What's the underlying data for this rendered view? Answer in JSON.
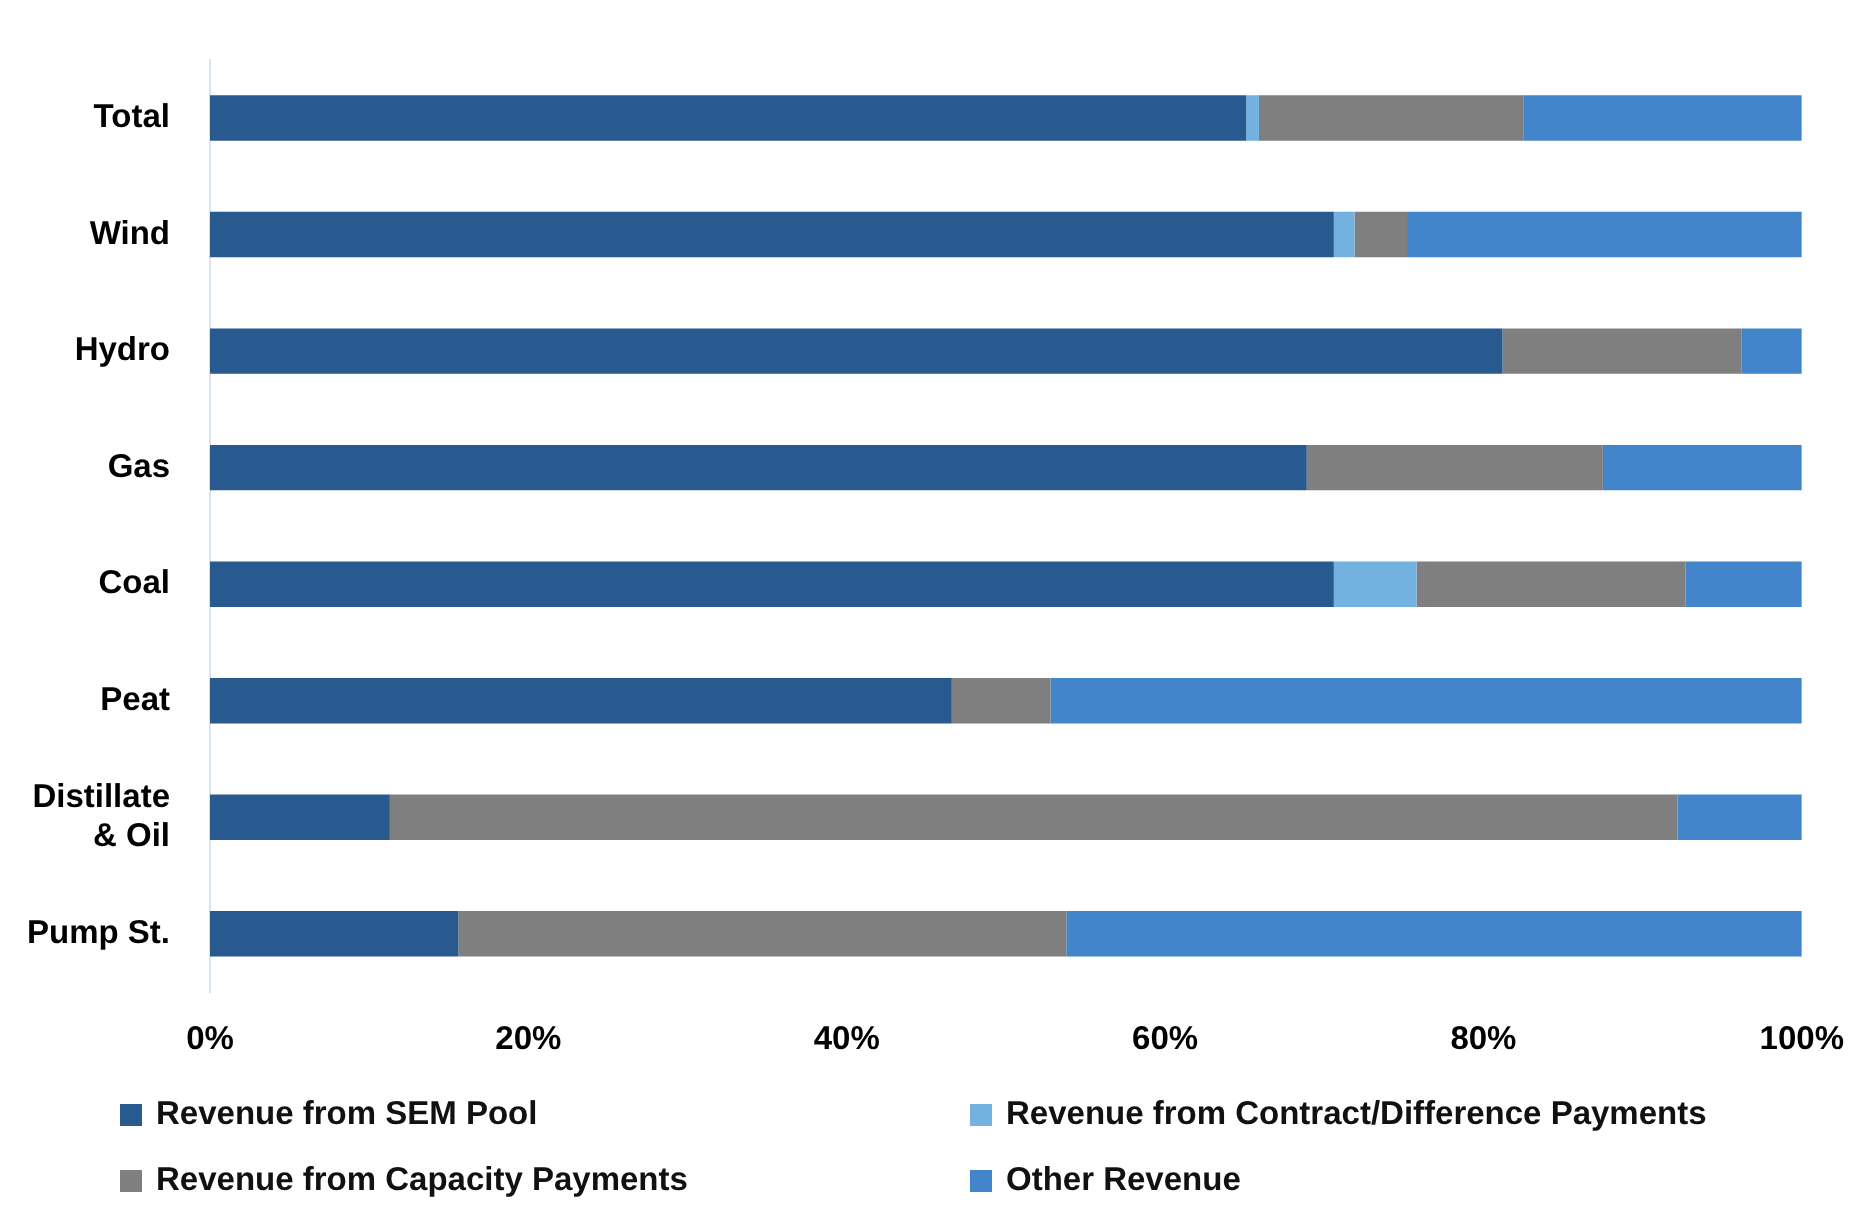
{
  "chart_data": {
    "type": "bar",
    "orientation": "horizontal",
    "stacked": true,
    "categories": [
      "Total",
      "Wind",
      "Hydro",
      "Gas",
      "Coal",
      "Peat",
      "Distillate & Oil",
      "Pump St."
    ],
    "series": [
      {
        "name": "Revenue from SEM Pool",
        "color": "#28598f",
        "values": [
          65.1,
          70.6,
          81.2,
          68.9,
          70.6,
          46.6,
          11.3,
          15.6
        ]
      },
      {
        "name": "Revenue from Contract/Difference Payments",
        "color": "#73b1e0",
        "values": [
          0.8,
          1.3,
          0,
          0,
          5.2,
          0,
          0,
          0
        ]
      },
      {
        "name": "Revenue from Capacity Payments",
        "color": "#7f7f7f",
        "values": [
          16.6,
          3.3,
          15.0,
          18.6,
          16.9,
          6.2,
          80.9,
          38.2
        ]
      },
      {
        "name": "Other Revenue",
        "color": "#4285cb",
        "values": [
          17.5,
          24.8,
          3.8,
          12.5,
          7.3,
          47.2,
          7.8,
          46.2
        ]
      }
    ],
    "xlim": [
      0,
      100
    ],
    "xticks": [
      {
        "value": 0,
        "label": "0%"
      },
      {
        "value": 20,
        "label": "20%"
      },
      {
        "value": 40,
        "label": "40%"
      },
      {
        "value": 60,
        "label": "60%"
      },
      {
        "value": 80,
        "label": "80%"
      },
      {
        "value": 100,
        "label": "100%"
      }
    ],
    "grid": false,
    "legend": "bottom"
  }
}
